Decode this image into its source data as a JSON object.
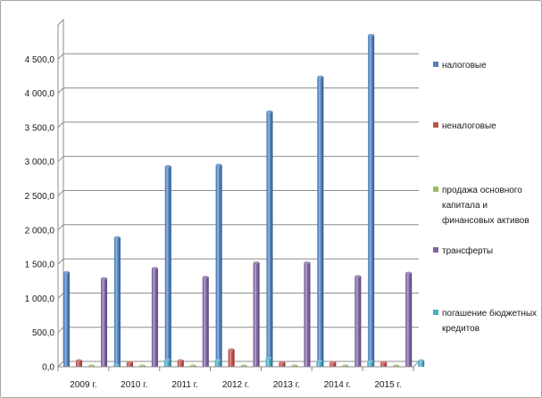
{
  "chart_data": {
    "type": "bar",
    "style": "3d-clustered-column",
    "categories": [
      "2009 г.",
      "2010 г.",
      "2011 г.",
      "2012 г.",
      "2013 г.",
      "2014 г.",
      "2015 г."
    ],
    "series": [
      {
        "name": "налоговые",
        "color": "#4f81bd",
        "values": [
          1380,
          1890,
          2930,
          2950,
          3730,
          4240,
          4850
        ]
      },
      {
        "name": "неналоговые",
        "color": "#c0504d",
        "values": [
          90,
          65,
          90,
          250,
          65,
          65,
          65
        ]
      },
      {
        "name": "продажа основного капитала и финансовых активов",
        "color": "#9bbb59",
        "values": [
          15,
          15,
          15,
          15,
          15,
          15,
          15
        ]
      },
      {
        "name": "трансферты",
        "color": "#8064a2",
        "values": [
          1290,
          1440,
          1310,
          1520,
          1520,
          1320,
          1370
        ]
      },
      {
        "name": "погашение бюджетных кредитов",
        "color": "#4bacc6",
        "values": [
          25,
          100,
          95,
          125,
          85,
          75,
          90
        ]
      }
    ],
    "yticks": [
      "0,0",
      "500,0",
      "1 000,0",
      "1 500,0",
      "2 000,0",
      "2 500,0",
      "3 000,0",
      "3 500,0",
      "4 000,0",
      "4 500,0"
    ],
    "ylim": [
      0,
      5000
    ],
    "ytick_step": 500,
    "grid": true,
    "legend_position": "right",
    "xlabel": "",
    "ylabel": "",
    "title": ""
  }
}
